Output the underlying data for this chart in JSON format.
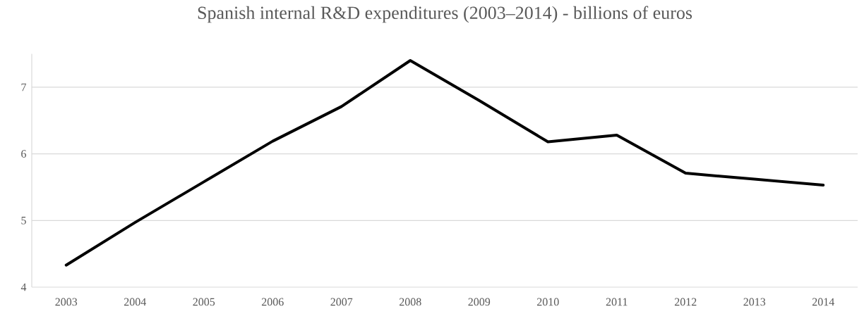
{
  "chart_data": {
    "type": "line",
    "title": "Spanish internal R&D expenditures (2003–2014) - billions of euros",
    "categories": [
      "2003",
      "2004",
      "2005",
      "2006",
      "2007",
      "2008",
      "2009",
      "2010",
      "2011",
      "2012",
      "2013",
      "2014"
    ],
    "values": [
      4.33,
      4.97,
      5.58,
      6.19,
      6.71,
      7.4,
      6.8,
      6.18,
      6.28,
      5.71,
      5.62,
      5.53
    ],
    "color": "#000000",
    "ylim": [
      4,
      7.5
    ],
    "yticks": [
      4,
      5,
      6,
      7
    ],
    "grid": "y",
    "marker": "none",
    "line_style": "solid"
  }
}
